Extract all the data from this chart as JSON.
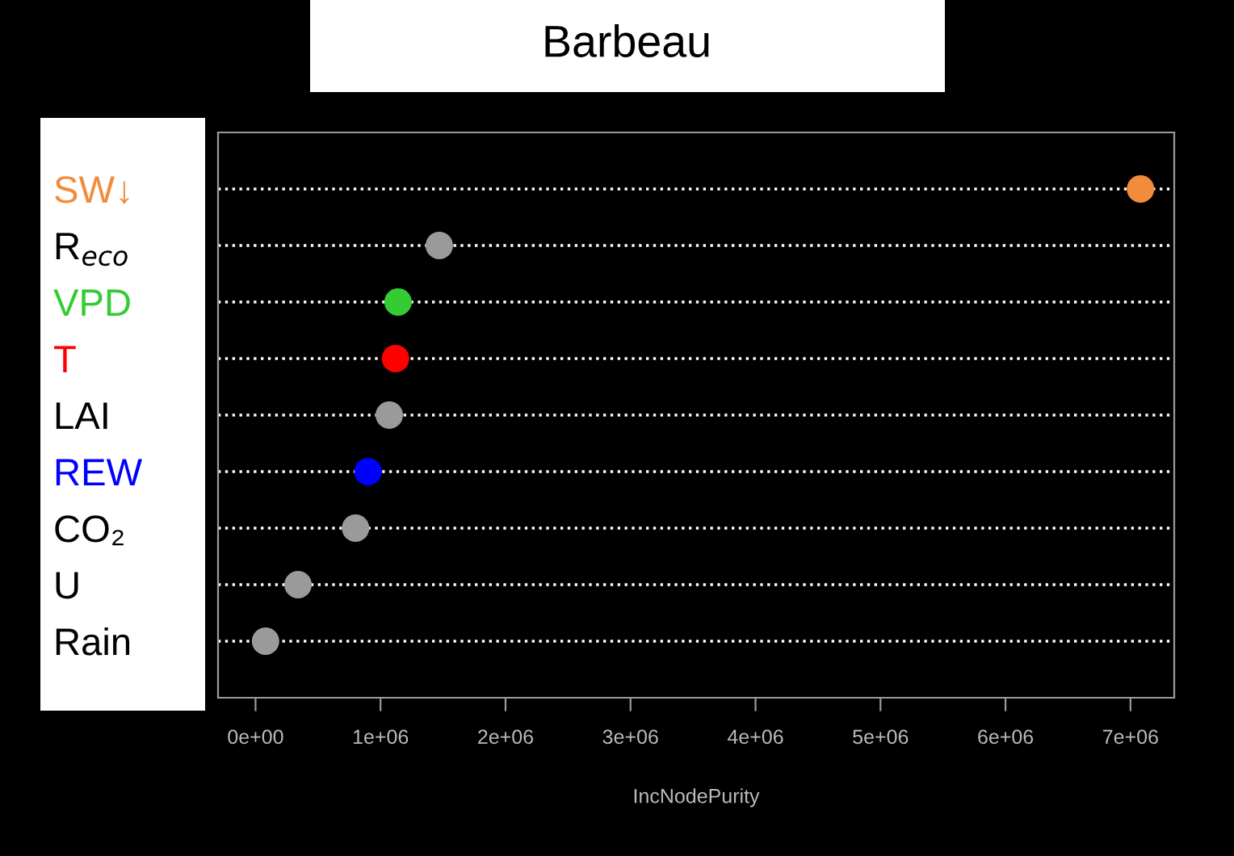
{
  "chart_data": {
    "type": "scatter",
    "title": "Barbeau",
    "xlabel": "IncNodePurity",
    "orientation": "horizontal",
    "categories": [
      "SW↓",
      "R$_{eco}$",
      "VPD",
      "T",
      "LAI",
      "REW",
      "CO₂",
      "U",
      "Rain"
    ],
    "values": [
      7080000,
      1470000,
      1140000,
      1120000,
      1070000,
      900000,
      800000,
      340000,
      80000
    ],
    "colors": [
      "#f08c3c",
      "#9a9a9a",
      "#33cc33",
      "#ff0000",
      "#9a9a9a",
      "#0000ff",
      "#9a9a9a",
      "#9a9a9a",
      "#9a9a9a"
    ],
    "xlim": [
      -300000,
      7350000
    ],
    "xticks": [
      {
        "value": 0,
        "label": "0e+00"
      },
      {
        "value": 1000000,
        "label": "1e+06"
      },
      {
        "value": 2000000,
        "label": "2e+06"
      },
      {
        "value": 3000000,
        "label": "3e+06"
      },
      {
        "value": 4000000,
        "label": "4e+06"
      },
      {
        "value": 5000000,
        "label": "5e+06"
      },
      {
        "value": 6000000,
        "label": "6e+06"
      },
      {
        "value": 7000000,
        "label": "7e+06"
      }
    ],
    "grid": "y",
    "marker": "circle",
    "legend": false
  }
}
